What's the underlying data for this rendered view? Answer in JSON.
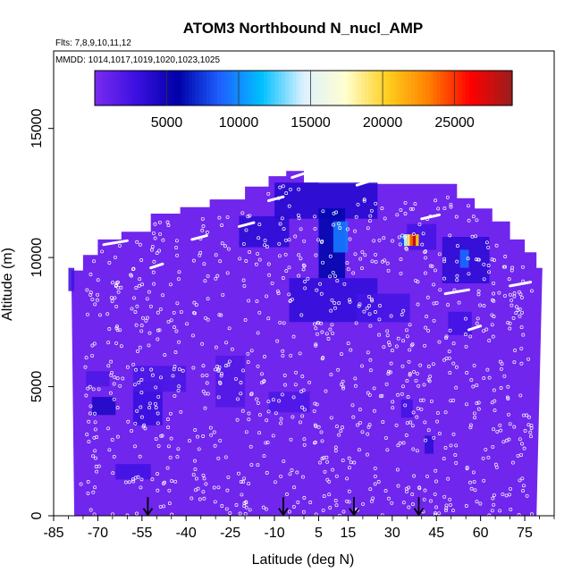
{
  "chart_data": {
    "type": "heatmap",
    "title": "ATOM3 Northbound N_nucl_AMP",
    "subtitle_flights": "Flts: 7,8,9,10,11,12",
    "subtitle_dates": "MMDD: 1014,1017,1019,1020,1023,1025",
    "xlabel": "Latitude (deg N)",
    "ylabel": "Altitude (m)",
    "xlim": [
      -85,
      85
    ],
    "ylim": [
      0,
      18000
    ],
    "x_ticks": [
      -85,
      -70,
      -55,
      -40,
      -25,
      -10,
      5,
      15,
      30,
      45,
      60,
      75
    ],
    "y_ticks": [
      0,
      5000,
      10000,
      15000
    ],
    "colorbar": {
      "range": [
        0,
        29000
      ],
      "ticks": [
        5000,
        10000,
        15000,
        20000,
        25000
      ],
      "colors": [
        "#7B2BF0",
        "#3A10E0",
        "#0000A8",
        "#1E60FF",
        "#00C0FF",
        "#DDF0FF",
        "#FFFFD0",
        "#FFD020",
        "#FF8000",
        "#FF0000",
        "#9A1E1E"
      ]
    },
    "background_value": 500,
    "regions": [
      {
        "lat": [
          -72,
          -64
        ],
        "alt": [
          3900,
          4600
        ],
        "value": 4200
      },
      {
        "lat": [
          -58,
          -48
        ],
        "alt": [
          3500,
          5200
        ],
        "value": 3000
      },
      {
        "lat": [
          -64,
          -52
        ],
        "alt": [
          1400,
          2000
        ],
        "value": 2600
      },
      {
        "lat": [
          -58,
          -40
        ],
        "alt": [
          4800,
          5800
        ],
        "value": 2200
      },
      {
        "lat": [
          -74,
          -66
        ],
        "alt": [
          5000,
          5600
        ],
        "value": 2000
      },
      {
        "lat": [
          -80,
          -78
        ],
        "alt": [
          8700,
          9600
        ],
        "value": 2500
      },
      {
        "lat": [
          -22,
          -5
        ],
        "alt": [
          10400,
          11600
        ],
        "value": 3500
      },
      {
        "lat": [
          -10,
          25
        ],
        "alt": [
          11500,
          12900
        ],
        "value": 3800
      },
      {
        "lat": [
          5,
          14
        ],
        "alt": [
          9200,
          11900
        ],
        "value": 6000
      },
      {
        "lat": [
          10,
          15
        ],
        "alt": [
          10200,
          11400
        ],
        "value": 9500
      },
      {
        "lat": [
          -5,
          25
        ],
        "alt": [
          7500,
          9200
        ],
        "value": 3200
      },
      {
        "lat": [
          18,
          36
        ],
        "alt": [
          7500,
          8600
        ],
        "value": 2400
      },
      {
        "lat": [
          47,
          63
        ],
        "alt": [
          9000,
          10800
        ],
        "value": 3400
      },
      {
        "lat": [
          53,
          56
        ],
        "alt": [
          9600,
          10300
        ],
        "value": 9000
      },
      {
        "lat": [
          35,
          45
        ],
        "alt": [
          10300,
          11300
        ],
        "value": 2400
      },
      {
        "lat": [
          49,
          57
        ],
        "alt": [
          7000,
          7900
        ],
        "value": 2600
      },
      {
        "lat": [
          -12,
          2
        ],
        "alt": [
          4000,
          4800
        ],
        "value": 2000
      },
      {
        "lat": [
          33,
          37
        ],
        "alt": [
          3800,
          4500
        ],
        "value": 2500
      },
      {
        "lat": [
          41,
          44
        ],
        "alt": [
          2400,
          3100
        ],
        "value": 3400
      },
      {
        "lat": [
          -30,
          -20
        ],
        "alt": [
          4200,
          6200
        ],
        "value": 1800
      }
    ],
    "hotspot": {
      "lat": [
        33,
        39
      ],
      "alt": [
        10450,
        10900
      ],
      "values": [
        8000,
        14000,
        19000,
        24000,
        28000,
        21000
      ]
    },
    "arrows_lat": [
      -53,
      -7,
      17,
      39
    ]
  }
}
